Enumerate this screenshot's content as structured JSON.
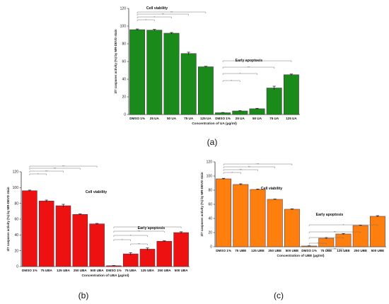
{
  "chart_data": [
    {
      "type": "bar",
      "panel_label": "(a)",
      "ylabel": "3/7 caspases activity (%) by MR-DEVD stain",
      "xlabel": "Concentration of UA (µg/ml)",
      "ylim": [
        0,
        120
      ],
      "yticks": [
        0,
        20,
        40,
        60,
        80,
        100,
        120
      ],
      "bar_color": "#1a8a1a",
      "annotations": [
        "Cell viability",
        "Early apoptosis"
      ],
      "categories": [
        "DMSO 1%",
        "25 UA",
        "50 UA",
        "75 UA",
        "125 UA",
        "DMSO 1%",
        "25 UA",
        "50 UA",
        "75 UA",
        "125 UA"
      ],
      "values": [
        96,
        95.5,
        92,
        69,
        54,
        2,
        4,
        6.5,
        30,
        45
      ],
      "errors": [
        0.8,
        0.8,
        0.8,
        1.5,
        0.6,
        0.3,
        0.4,
        0.5,
        2.0,
        0.8
      ],
      "sig_marks": [
        "**",
        "**",
        "*",
        "*",
        "**",
        "**",
        "*",
        "*"
      ]
    },
    {
      "type": "bar",
      "panel_label": "(b)",
      "ylabel": "3/7 caspases activity (%) by MR-DEVD stain",
      "xlabel": "Concentration of UBA (µg/ml)",
      "ylim": [
        0,
        120
      ],
      "yticks": [
        0,
        20,
        40,
        60,
        80,
        100,
        120
      ],
      "bar_color": "#ee1111",
      "annotations": [
        "Cell viability",
        "Early apoptosis"
      ],
      "categories": [
        "DMSO 1%",
        "75 UBA",
        "125 UBA",
        "250 UBA",
        "500 UBA",
        "DMSO 1%",
        "75 UBA",
        "125 UBA",
        "250 UBA",
        "500 UBA"
      ],
      "values": [
        96,
        83,
        77,
        66,
        54,
        1,
        16,
        22,
        32,
        43
      ],
      "errors": [
        0.8,
        1.2,
        1.8,
        0.6,
        0.6,
        0.3,
        1.5,
        1.5,
        0.6,
        1.0
      ],
      "sig_marks": [
        "**",
        "**",
        "**",
        "*",
        "*",
        "**",
        "*",
        "*",
        "**"
      ]
    },
    {
      "type": "bar",
      "panel_label": "(c)",
      "ylabel": "3/7 caspases activity (%) by MR-DEVD stain",
      "xlabel": "Concentration of UBE (µg/ml)",
      "ylim": [
        0,
        120
      ],
      "yticks": [
        0,
        20,
        40,
        60,
        80,
        100,
        120
      ],
      "bar_color": "#ff7f0e",
      "annotations": [
        "Cell viability",
        "Early apoptosis"
      ],
      "categories": [
        "DMSO 1%",
        "75 UBE",
        "125 UBE",
        "250 UBE",
        "500 UBE",
        "DMSO 1%",
        "75 UBE",
        "125 UBE",
        "250 UBE",
        "500 UBE"
      ],
      "values": [
        96,
        88,
        81,
        67,
        53,
        1,
        12,
        18,
        30,
        43
      ],
      "errors": [
        0.8,
        1.0,
        0.6,
        0.5,
        0.6,
        0.3,
        0.8,
        0.7,
        0.5,
        1.0
      ],
      "sig_marks": [
        "**",
        "**",
        "**",
        "*",
        "*",
        "**",
        "*",
        "*",
        "**"
      ]
    }
  ]
}
